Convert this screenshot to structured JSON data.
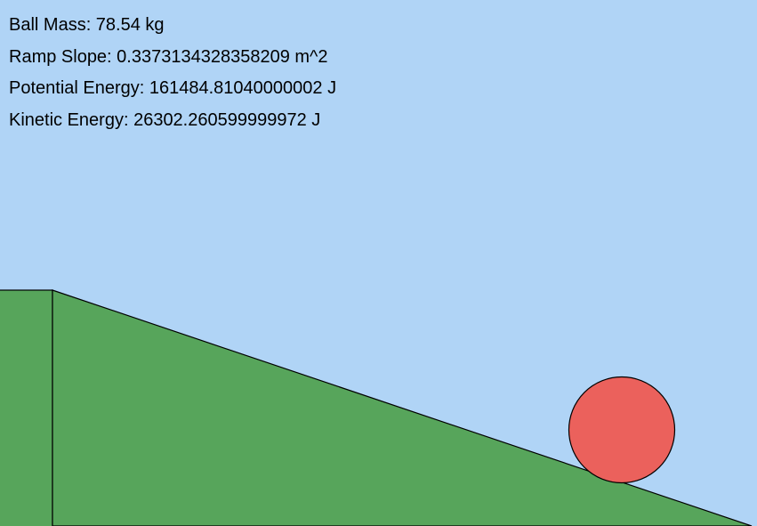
{
  "readouts": {
    "ball_mass": "Ball Mass: 78.54 kg",
    "ramp_slope": "Ramp Slope: 0.3373134328358209 m^2",
    "potential_energy": "Potential Energy: 161484.81040000002 J",
    "kinetic_energy": "Kinetic Energy: 26302.260599999972 J"
  },
  "colors": {
    "sky": "#b0d4f6",
    "ground": "#57a55b",
    "ball": "#eb615c",
    "outline": "#000000"
  }
}
